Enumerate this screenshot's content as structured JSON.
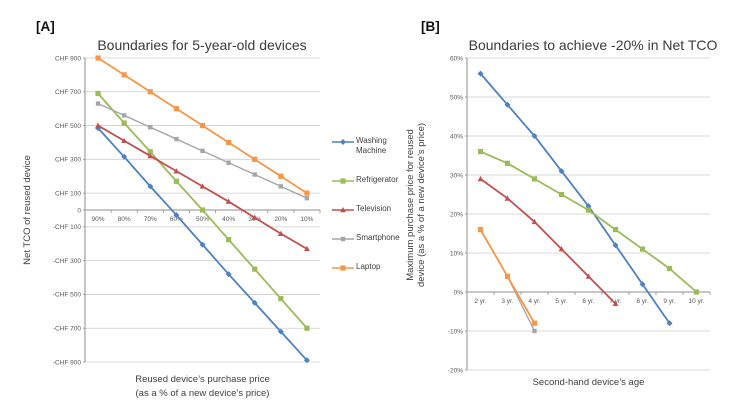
{
  "figure": {
    "background": "#ffffff",
    "panel_a_tag": "[A]",
    "panel_b_tag": "[B]"
  },
  "colors": {
    "gridline": "#cdcdcd",
    "axis": "#8f8f8f",
    "tick_text": "#595959",
    "title_text": "#3b3b3b"
  },
  "legend": {
    "items": [
      {
        "label": "Washing Machine",
        "color": "#4F81BD",
        "marker": "diamond"
      },
      {
        "label": "Refrigerator",
        "color": "#9BBB59",
        "marker": "square"
      },
      {
        "label": "Television",
        "color": "#C0504D",
        "marker": "triangle"
      },
      {
        "label": "Smartphone",
        "color": "#A6A6A6",
        "marker": "square-small"
      },
      {
        "label": "Laptop",
        "color": "#F79646",
        "marker": "square"
      }
    ]
  },
  "chart_data": [
    {
      "id": "A",
      "type": "line",
      "tag": "[A]",
      "title": "Boundaries for 5-year-old devices",
      "xlabel_lines": [
        "Reused device’s purchase price",
        "(as a % of a new device’s price)"
      ],
      "ylabel_lines": [
        "Net TCO of reused device"
      ],
      "categories": [
        "90%",
        "80%",
        "70%",
        "60%",
        "50%",
        "40%",
        "30%",
        "20%",
        "10%"
      ],
      "ylim": [
        -900,
        900
      ],
      "grid": true,
      "legend_position": "right-of-panel",
      "y_ticks": [
        {
          "v": 900,
          "label": "CHF 900"
        },
        {
          "v": 700,
          "label": "CHF 700"
        },
        {
          "v": 500,
          "label": "CHF 500"
        },
        {
          "v": 300,
          "label": "CHF 300"
        },
        {
          "v": 100,
          "label": "CHF 100"
        },
        {
          "v": 0,
          "label": "0"
        },
        {
          "v": -100,
          "label": "-CHF 100"
        },
        {
          "v": -300,
          "label": "-CHF 300"
        },
        {
          "v": -500,
          "label": "-CHF 500"
        },
        {
          "v": -700,
          "label": "-CHF 700"
        },
        {
          "v": -900,
          "label": "-CHF 900"
        }
      ],
      "series": [
        {
          "name": "Washing Machine",
          "values": [
            485,
            315,
            140,
            -30,
            -205,
            -380,
            -550,
            -720,
            -890
          ]
        },
        {
          "name": "Refrigerator",
          "values": [
            690,
            515,
            345,
            170,
            0,
            -175,
            -350,
            -525,
            -700
          ]
        },
        {
          "name": "Television",
          "values": [
            500,
            410,
            320,
            230,
            140,
            50,
            -45,
            -140,
            -230
          ]
        },
        {
          "name": "Smartphone",
          "values": [
            630,
            560,
            490,
            420,
            350,
            280,
            210,
            140,
            70
          ]
        },
        {
          "name": "Laptop",
          "values": [
            900,
            800,
            700,
            600,
            500,
            400,
            300,
            200,
            100
          ]
        }
      ]
    },
    {
      "id": "B",
      "type": "line",
      "tag": "[B]",
      "title": "Boundaries to achieve -20% in Net TCO",
      "xlabel_lines": [
        "Second-hand device’s age"
      ],
      "ylabel_lines": [
        "Maximum purchase price for reused",
        "device (as a % of a new device’s price)"
      ],
      "categories": [
        "2 yr.",
        "3 yr.",
        "4 yr.",
        "5 yr.",
        "6 yr.",
        "7 yr.",
        "8 yr.",
        "9 yr.",
        "10 yr."
      ],
      "ylim": [
        -20,
        60
      ],
      "grid": true,
      "y_ticks": [
        {
          "v": 60,
          "label": "60%"
        },
        {
          "v": 50,
          "label": "50%"
        },
        {
          "v": 40,
          "label": "40%"
        },
        {
          "v": 30,
          "label": "30%"
        },
        {
          "v": 20,
          "label": "20%"
        },
        {
          "v": 10,
          "label": "10%"
        },
        {
          "v": 0,
          "label": "0%"
        },
        {
          "v": -10,
          "label": "-10%"
        },
        {
          "v": -20,
          "label": "-20%"
        }
      ],
      "series": [
        {
          "name": "Washing Machine",
          "values": [
            56,
            48,
            40,
            31,
            22,
            12,
            2,
            -8
          ]
        },
        {
          "name": "Refrigerator",
          "values": [
            36,
            33,
            29,
            25,
            21,
            16,
            11,
            6,
            0
          ]
        },
        {
          "name": "Television",
          "values": [
            29,
            24,
            18,
            11,
            4,
            -3
          ]
        },
        {
          "name": "Smartphone",
          "values": [
            16,
            4,
            -10
          ]
        },
        {
          "name": "Laptop",
          "values": [
            16,
            4,
            -8
          ]
        }
      ]
    }
  ]
}
